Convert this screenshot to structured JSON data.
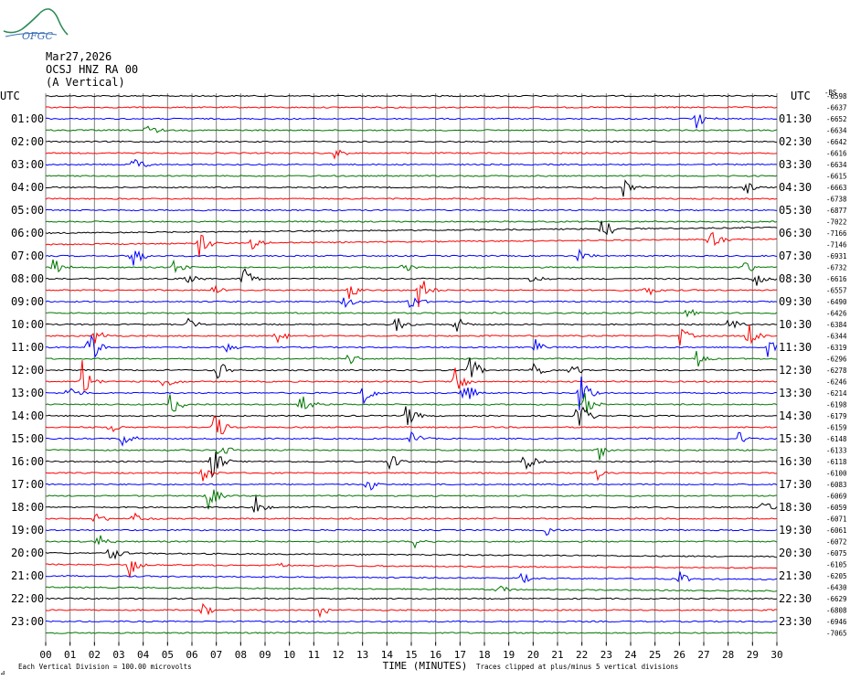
{
  "header": {
    "logo_text": "OFGC",
    "date": "Mar27,2026",
    "station": "OCSJ HNZ RA 00",
    "component": "(A Vertical)"
  },
  "footer": {
    "division_note": "Each Vertical Division =  100.00 microvolts",
    "clip_note": "Traces clipped at plus/minus 5 vertical divisions",
    "corner_mark": "⊿"
  },
  "colors": {
    "black": "#000000",
    "red": "#ff0000",
    "blue": "#0000ff",
    "green": "#007700",
    "grid": "#808080"
  },
  "chart_data": {
    "type": "line",
    "title": "OCSJ HNZ RA 00 (A Vertical) Mar27,2026",
    "xlabel": "TIME (MINUTES)",
    "ylabel": "",
    "left_axis_label": "UTC",
    "right_axis_label": "UTC",
    "xlim": [
      0,
      30
    ],
    "x_ticks": [
      "00",
      "01",
      "02",
      "03",
      "04",
      "05",
      "06",
      "07",
      "08",
      "09",
      "10",
      "11",
      "12",
      "13",
      "14",
      "15",
      "16",
      "17",
      "18",
      "19",
      "20",
      "21",
      "22",
      "23",
      "24",
      "25",
      "26",
      "27",
      "28",
      "29",
      "30"
    ],
    "left_hours": [
      "01:00",
      "02:00",
      "03:00",
      "04:00",
      "05:00",
      "06:00",
      "07:00",
      "08:00",
      "09:00",
      "10:00",
      "11:00",
      "12:00",
      "13:00",
      "14:00",
      "15:00",
      "16:00",
      "17:00",
      "18:00",
      "19:00",
      "20:00",
      "21:00",
      "22:00",
      "23:00"
    ],
    "right_halfhours": [
      "01:30",
      "02:30",
      "03:30",
      "04:30",
      "05:30",
      "06:30",
      "07:30",
      "08:30",
      "09:30",
      "10:30",
      "11:30",
      "12:30",
      "13:30",
      "14:30",
      "15:30",
      "16:30",
      "17:30",
      "18:30",
      "19:30",
      "20:30",
      "21:30",
      "22:30",
      "23:30"
    ],
    "trace_color_cycle": [
      "black",
      "red",
      "blue",
      "green"
    ],
    "trace_offsets": [
      -6598,
      -6637,
      -6652,
      -6634,
      -6642,
      -6616,
      -6634,
      -6615,
      -6663,
      -6738,
      -6877,
      -7022,
      -7166,
      -7146,
      -6931,
      -6732,
      -6616,
      -6557,
      -6490,
      -6426,
      -6384,
      -6344,
      -6319,
      -6296,
      -6278,
      -6246,
      -6214,
      -6198,
      -6179,
      -6159,
      -6148,
      -6133,
      -6118,
      -6100,
      -6083,
      -6069,
      -6059,
      -6071,
      -6061,
      -6072,
      -6075,
      -6105,
      -6205,
      -6430,
      -6629,
      -6808,
      -6946,
      -7065
    ],
    "top_right_mark": "-BS",
    "events": [
      {
        "trace": 2,
        "minute": 26.7,
        "amp": 2
      },
      {
        "trace": 3,
        "minute": 4.1,
        "amp": 1.5
      },
      {
        "trace": 5,
        "minute": 11.8,
        "amp": 1.5
      },
      {
        "trace": 6,
        "minute": 3.6,
        "amp": 2
      },
      {
        "trace": 8,
        "minute": 23.7,
        "amp": 2
      },
      {
        "trace": 8,
        "minute": 28.7,
        "amp": 2
      },
      {
        "trace": 12,
        "minute": 22.8,
        "amp": 4.5
      },
      {
        "trace": 13,
        "minute": 6.3,
        "amp": 2.5
      },
      {
        "trace": 13,
        "minute": 8.4,
        "amp": 1.5
      },
      {
        "trace": 13,
        "minute": 27.2,
        "amp": 3
      },
      {
        "trace": 14,
        "minute": 3.5,
        "amp": 3
      },
      {
        "trace": 14,
        "minute": 21.8,
        "amp": 1.5
      },
      {
        "trace": 15,
        "minute": 0.3,
        "amp": 2
      },
      {
        "trace": 15,
        "minute": 5.2,
        "amp": 2
      },
      {
        "trace": 15,
        "minute": 14.6,
        "amp": 1.5
      },
      {
        "trace": 15,
        "minute": 28.6,
        "amp": 2
      },
      {
        "trace": 16,
        "minute": 5.7,
        "amp": 1.5
      },
      {
        "trace": 16,
        "minute": 8.1,
        "amp": 2.5
      },
      {
        "trace": 16,
        "minute": 19.9,
        "amp": 1.5
      },
      {
        "trace": 16,
        "minute": 29.1,
        "amp": 2
      },
      {
        "trace": 17,
        "minute": 6.8,
        "amp": 1.5
      },
      {
        "trace": 17,
        "minute": 12.4,
        "amp": 2
      },
      {
        "trace": 17,
        "minute": 15.3,
        "amp": 3.5
      },
      {
        "trace": 17,
        "minute": 24.6,
        "amp": 1.5
      },
      {
        "trace": 18,
        "minute": 12.2,
        "amp": 2
      },
      {
        "trace": 18,
        "minute": 14.9,
        "amp": 2
      },
      {
        "trace": 19,
        "minute": 26.3,
        "amp": 1.5
      },
      {
        "trace": 20,
        "minute": 5.8,
        "amp": 1.5
      },
      {
        "trace": 20,
        "minute": 14.3,
        "amp": 2
      },
      {
        "trace": 20,
        "minute": 16.8,
        "amp": 2
      },
      {
        "trace": 20,
        "minute": 28.0,
        "amp": 2
      },
      {
        "trace": 21,
        "minute": 2.0,
        "amp": 1.5
      },
      {
        "trace": 21,
        "minute": 9.4,
        "amp": 2
      },
      {
        "trace": 21,
        "minute": 26.0,
        "amp": 2
      },
      {
        "trace": 21,
        "minute": 28.8,
        "amp": 3.5
      },
      {
        "trace": 22,
        "minute": 1.7,
        "amp": 5
      },
      {
        "trace": 22,
        "minute": 7.3,
        "amp": 1.5
      },
      {
        "trace": 22,
        "minute": 20.0,
        "amp": 2
      },
      {
        "trace": 22,
        "minute": 29.6,
        "amp": 2
      },
      {
        "trace": 23,
        "minute": 12.4,
        "amp": 3
      },
      {
        "trace": 23,
        "minute": 26.7,
        "amp": 2
      },
      {
        "trace": 24,
        "minute": 7.0,
        "amp": 2.5
      },
      {
        "trace": 24,
        "minute": 17.4,
        "amp": 3
      },
      {
        "trace": 24,
        "minute": 19.9,
        "amp": 3
      },
      {
        "trace": 24,
        "minute": 21.5,
        "amp": 2
      },
      {
        "trace": 25,
        "minute": 1.5,
        "amp": 4
      },
      {
        "trace": 25,
        "minute": 4.8,
        "amp": 2
      },
      {
        "trace": 25,
        "minute": 16.8,
        "amp": 3
      },
      {
        "trace": 26,
        "minute": 0.9,
        "amp": 2
      },
      {
        "trace": 26,
        "minute": 13.0,
        "amp": 3
      },
      {
        "trace": 26,
        "minute": 17.1,
        "amp": 3.5
      },
      {
        "trace": 26,
        "minute": 21.9,
        "amp": 4
      },
      {
        "trace": 27,
        "minute": 5.1,
        "amp": 2.5
      },
      {
        "trace": 27,
        "minute": 10.4,
        "amp": 3.5
      },
      {
        "trace": 27,
        "minute": 22.1,
        "amp": 2.5
      },
      {
        "trace": 28,
        "minute": 14.7,
        "amp": 3
      },
      {
        "trace": 28,
        "minute": 21.8,
        "amp": 4
      },
      {
        "trace": 29,
        "minute": 6.9,
        "amp": 4
      },
      {
        "trace": 29,
        "minute": 2.6,
        "amp": 1.5
      },
      {
        "trace": 30,
        "minute": 3.1,
        "amp": 2
      },
      {
        "trace": 30,
        "minute": 15.0,
        "amp": 2
      },
      {
        "trace": 30,
        "minute": 28.4,
        "amp": 1.5
      },
      {
        "trace": 31,
        "minute": 7.1,
        "amp": 2
      },
      {
        "trace": 31,
        "minute": 22.7,
        "amp": 2
      },
      {
        "trace": 32,
        "minute": 6.8,
        "amp": 4
      },
      {
        "trace": 32,
        "minute": 14.1,
        "amp": 2
      },
      {
        "trace": 32,
        "minute": 19.6,
        "amp": 2.5
      },
      {
        "trace": 33,
        "minute": 6.4,
        "amp": 2
      },
      {
        "trace": 33,
        "minute": 22.6,
        "amp": 2
      },
      {
        "trace": 34,
        "minute": 13.2,
        "amp": 1.5
      },
      {
        "trace": 35,
        "minute": 6.5,
        "amp": 5
      },
      {
        "trace": 36,
        "minute": 8.6,
        "amp": 3
      },
      {
        "trace": 36,
        "minute": 29.4,
        "amp": 1.5
      },
      {
        "trace": 37,
        "minute": 2.0,
        "amp": 1.5
      },
      {
        "trace": 37,
        "minute": 3.6,
        "amp": 1.5
      },
      {
        "trace": 38,
        "minute": 20.5,
        "amp": 1.2
      },
      {
        "trace": 39,
        "minute": 2.1,
        "amp": 2
      },
      {
        "trace": 39,
        "minute": 15.1,
        "amp": 1.5
      },
      {
        "trace": 40,
        "minute": 2.6,
        "amp": 3
      },
      {
        "trace": 41,
        "minute": 9.4,
        "amp": 1.5
      },
      {
        "trace": 41,
        "minute": 3.4,
        "amp": 3
      },
      {
        "trace": 42,
        "minute": 26.0,
        "amp": 1.5
      },
      {
        "trace": 42,
        "minute": 19.5,
        "amp": 1.2
      },
      {
        "trace": 43,
        "minute": 18.5,
        "amp": 1.5
      },
      {
        "trace": 45,
        "minute": 6.4,
        "amp": 1.5
      },
      {
        "trace": 45,
        "minute": 11.2,
        "amp": 1.5
      }
    ]
  }
}
